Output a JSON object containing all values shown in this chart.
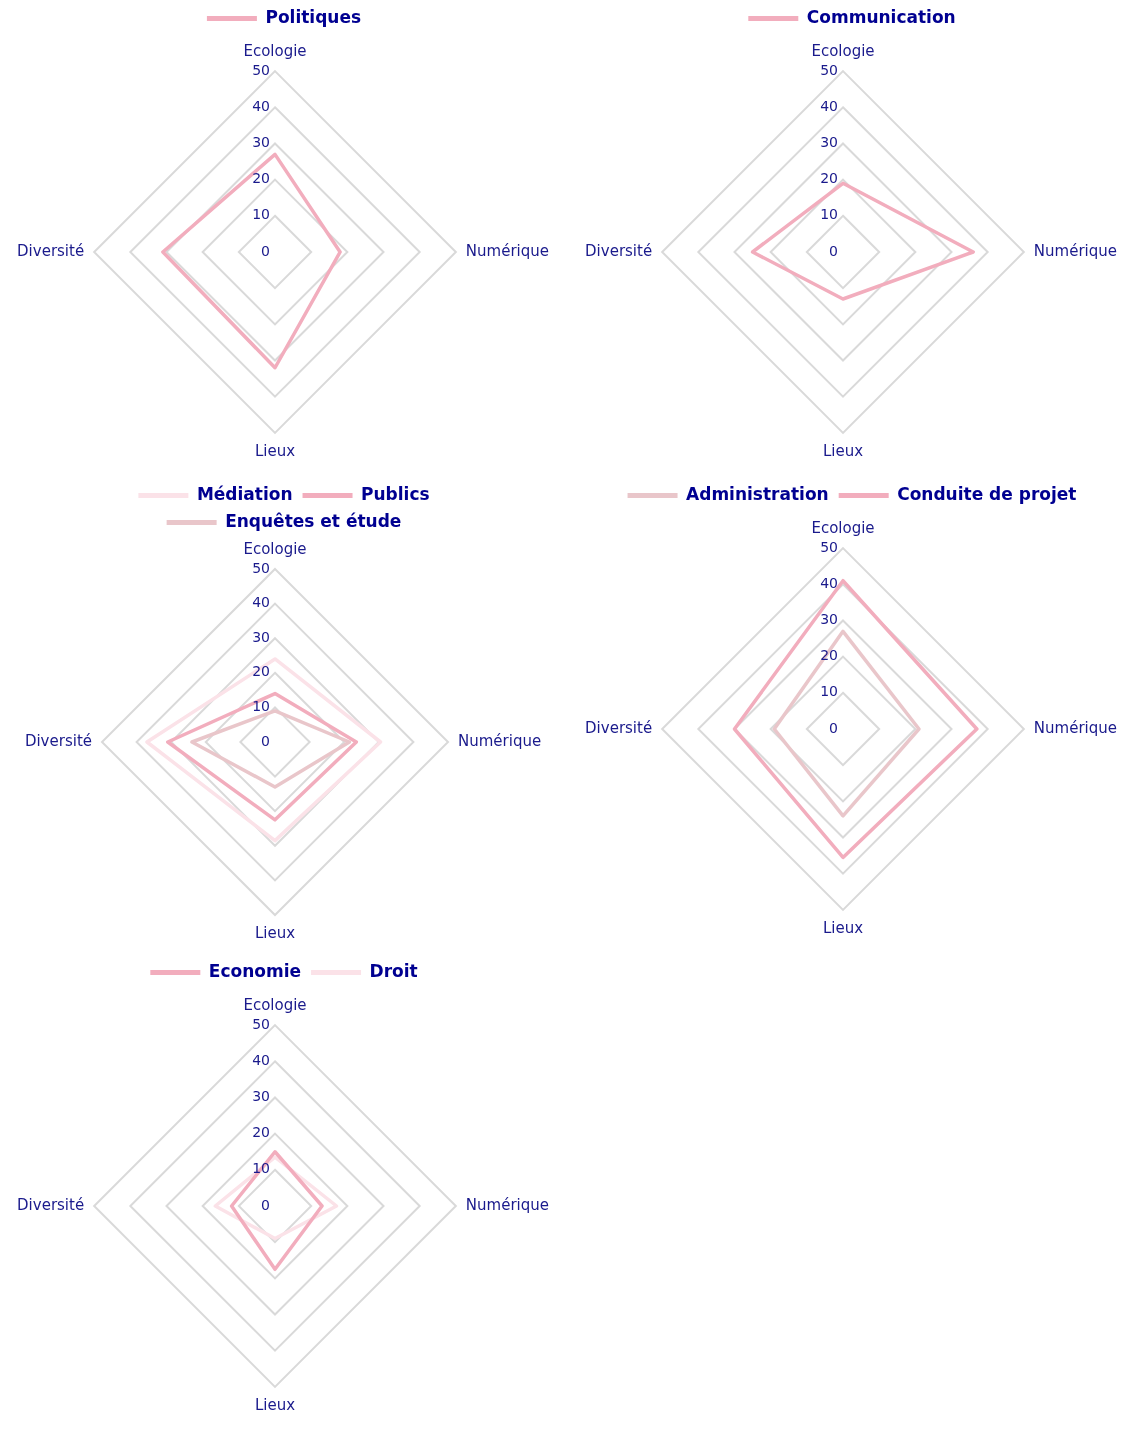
{
  "chart_data": [
    {
      "type": "radar",
      "categories": [
        "Ecologie",
        "Numérique",
        "Lieux",
        "Diversité"
      ],
      "ylim": [
        0,
        50
      ],
      "yticks": [
        0,
        10,
        20,
        30,
        40,
        50
      ],
      "grid": true,
      "legend": "top",
      "marker": "none",
      "series": [
        {
          "name": "Politiques",
          "color": "#f2adbd",
          "values": [
            27,
            18,
            32,
            31
          ]
        }
      ]
    },
    {
      "type": "radar",
      "categories": [
        "Ecologie",
        "Numérique",
        "Lieux",
        "Diversité"
      ],
      "ylim": [
        0,
        50
      ],
      "yticks": [
        0,
        10,
        20,
        30,
        40,
        50
      ],
      "grid": true,
      "legend": "top",
      "marker": "none",
      "series": [
        {
          "name": "Communication",
          "color": "#f2adbd",
          "values": [
            19,
            36,
            13,
            25
          ]
        }
      ]
    },
    {
      "type": "radar",
      "categories": [
        "Ecologie",
        "Numérique",
        "Lieux",
        "Diversité"
      ],
      "ylim": [
        0,
        50
      ],
      "yticks": [
        0,
        10,
        20,
        30,
        40,
        50
      ],
      "grid": true,
      "legend": "top",
      "marker": "none",
      "series": [
        {
          "name": "Médiation",
          "color": "#fbe2e8",
          "values": [
            24,
            30.5,
            28.5,
            37
          ]
        },
        {
          "name": "Publics",
          "color": "#f2adbd",
          "values": [
            14,
            23.5,
            22.5,
            31
          ]
        },
        {
          "name": "Enquêtes et étude",
          "color": "#e9c6ca",
          "values": [
            9,
            21.5,
            13,
            24
          ]
        }
      ]
    },
    {
      "type": "radar",
      "categories": [
        "Ecologie",
        "Numérique",
        "Lieux",
        "Diversité"
      ],
      "ylim": [
        0,
        50
      ],
      "yticks": [
        0,
        10,
        20,
        30,
        40,
        50
      ],
      "grid": true,
      "legend": "top",
      "marker": "none",
      "series": [
        {
          "name": "Administration",
          "color": "#e9c6ca",
          "values": [
            27,
            21,
            24,
            19
          ]
        },
        {
          "name": "Conduite de projet",
          "color": "#f2adbd",
          "values": [
            41,
            37,
            35.5,
            30
          ]
        }
      ]
    },
    {
      "type": "radar",
      "categories": [
        "Ecologie",
        "Numérique",
        "Lieux",
        "Diversité"
      ],
      "ylim": [
        0,
        50
      ],
      "yticks": [
        0,
        10,
        20,
        30,
        40,
        50
      ],
      "grid": true,
      "legend": "top",
      "marker": "none",
      "series": [
        {
          "name": "Economie",
          "color": "#f2adbd",
          "values": [
            15,
            13,
            17.5,
            12
          ]
        },
        {
          "name": "Droit",
          "color": "#fbe2e8",
          "values": [
            13.5,
            17,
            9,
            16.5
          ]
        }
      ]
    }
  ]
}
